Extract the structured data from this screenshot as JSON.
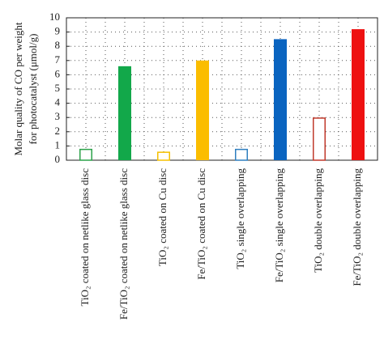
{
  "chart_data": {
    "type": "bar",
    "ylabel": [
      "Molar quality of CO per weight",
      "for photocatalyst (μmol/g)"
    ],
    "categories": [
      "TiO₂ coated on netlike glass disc",
      "Fe/TiO₂ coated on netlike glass disc",
      "TiO₂ coated on Cu disc",
      "Fe/TiO₂ coated on Cu disc",
      "TiO₂ single overlapping",
      "Fe/TiO₂ single overlapping",
      "TiO₂ double overlapping",
      "Fe/TiO₂ double overlapping"
    ],
    "values": [
      0.8,
      6.6,
      0.6,
      7.0,
      0.8,
      8.5,
      3.0,
      9.2
    ],
    "colors": [
      "#2ca24a",
      "#12a84a",
      "#f5c000",
      "#fbbd00",
      "#2f7fbf",
      "#0a64c0",
      "#c0392b",
      "#ee1111"
    ],
    "filled": [
      false,
      true,
      false,
      true,
      false,
      true,
      false,
      true
    ],
    "ylim": [
      0,
      10
    ],
    "yticks": [
      0,
      1,
      2,
      3,
      4,
      5,
      6,
      7,
      8,
      9,
      10
    ],
    "grid": true
  }
}
